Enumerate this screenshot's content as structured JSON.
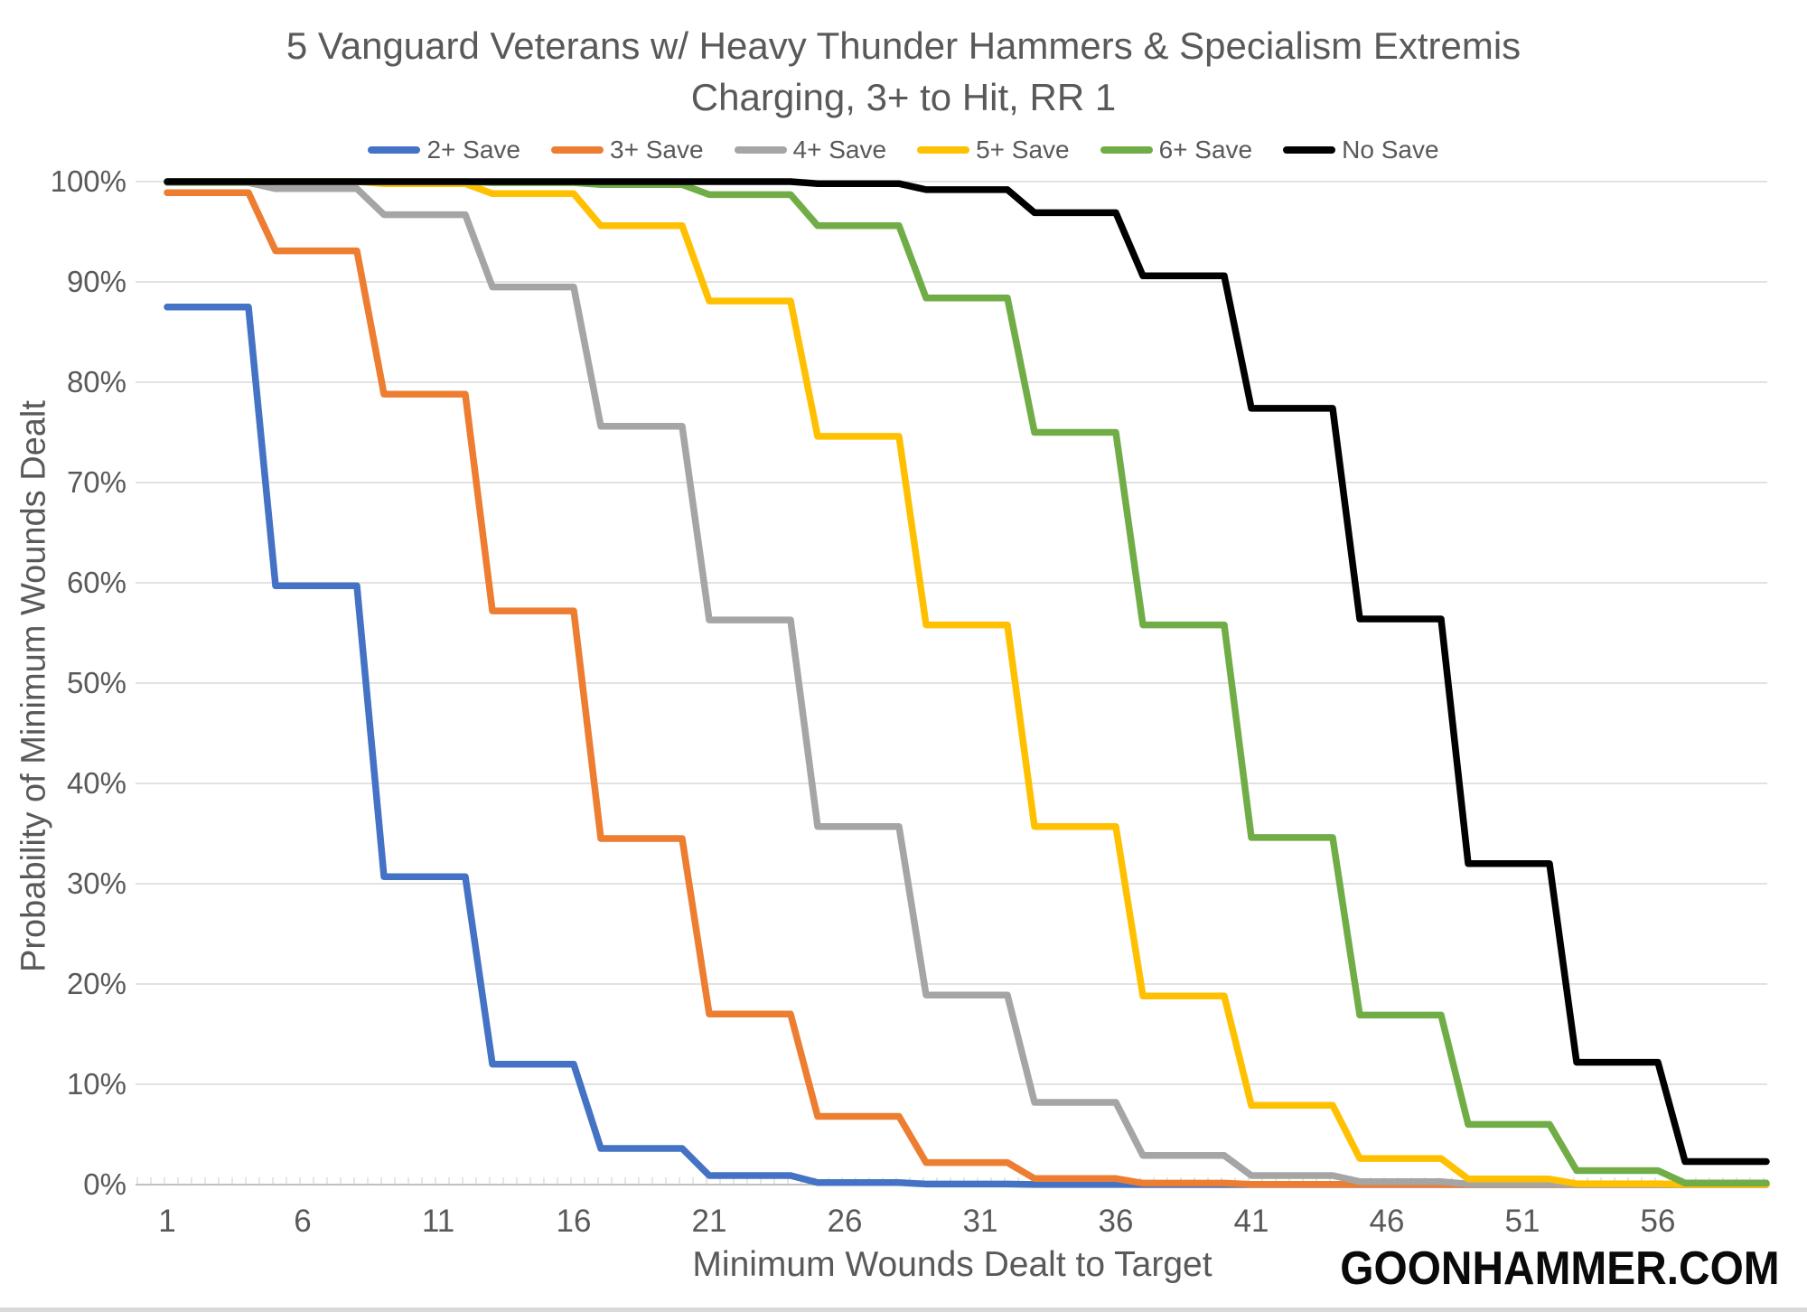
{
  "chart_data": {
    "type": "line",
    "title": "5 Vanguard Veterans w/ Heavy Thunder Hammers & Specialism Extremis",
    "subtitle": "Charging, 3+ to Hit, RR 1",
    "xlabel": "Minimum Wounds Dealt to Target",
    "ylabel": "Probability of Minimum Wounds Dealt",
    "legend_position": "top",
    "grid": "horizontal-only",
    "x_range": [
      1,
      60
    ],
    "ylim": [
      0,
      100
    ],
    "x_tick_labels": [
      1,
      6,
      11,
      16,
      21,
      26,
      31,
      36,
      41,
      46,
      51,
      56
    ],
    "y_tick_labels": [
      "0%",
      "10%",
      "20%",
      "30%",
      "40%",
      "50%",
      "60%",
      "70%",
      "80%",
      "90%",
      "100%"
    ],
    "step_width_x": 4,
    "series_note": "Staircase survival curves: each value is the probability (%) that at least x wounds are dealt, constant across a block of 4 consecutive x values (x = 4k+1 .. 4k+4); consecutive integer points are joined linearly.",
    "series": [
      {
        "name": "2+ Save",
        "slug": "2-plus-save",
        "color": "#4472C4",
        "step_values_pct": [
          87.5,
          59.7,
          30.7,
          12.0,
          3.6,
          0.9,
          0.2,
          0.05,
          0.01,
          0,
          0,
          0,
          0,
          0,
          0
        ]
      },
      {
        "name": "3+ Save",
        "slug": "3-plus-save",
        "color": "#ED7D31",
        "step_values_pct": [
          98.9,
          93.1,
          78.8,
          57.2,
          34.5,
          17.0,
          6.8,
          2.2,
          0.6,
          0.14,
          0.03,
          0.01,
          0,
          0,
          0
        ]
      },
      {
        "name": "4+ Save",
        "slug": "4-plus-save",
        "color": "#A5A5A5",
        "step_values_pct": [
          99.9,
          99.3,
          96.7,
          89.5,
          75.6,
          56.3,
          35.7,
          18.9,
          8.2,
          2.9,
          0.9,
          0.3,
          0.05,
          0.01,
          0
        ]
      },
      {
        "name": "5+ Save",
        "slug": "5-plus-save",
        "color": "#FFC000",
        "step_values_pct": [
          100,
          100,
          99.8,
          98.8,
          95.6,
          88.1,
          74.6,
          55.8,
          35.7,
          18.8,
          7.9,
          2.6,
          0.56,
          0.08,
          0.01
        ]
      },
      {
        "name": "6+ Save",
        "slug": "6-plus-save",
        "color": "#70AD47",
        "step_values_pct": [
          100,
          100,
          100,
          99.9,
          99.7,
          98.7,
          95.6,
          88.4,
          75.0,
          55.8,
          34.6,
          16.9,
          6.0,
          1.4,
          0.15
        ]
      },
      {
        "name": "No Save",
        "slug": "no-save",
        "color": "#000000",
        "step_values_pct": [
          100,
          100,
          100,
          100,
          100,
          100,
          99.8,
          99.2,
          96.9,
          90.6,
          77.4,
          56.4,
          32.0,
          12.2,
          2.3
        ]
      }
    ]
  },
  "watermark": "GOONHAMMER.COM",
  "colors": {
    "background": "#FFFFFF",
    "title_text": "#595959",
    "axis_text": "#595959",
    "gridline": "#D9D9D9",
    "axis_line": "#BFBFBF",
    "tick_mark": "#D9D9D9",
    "bottom_bar": "#D9D9D9"
  }
}
